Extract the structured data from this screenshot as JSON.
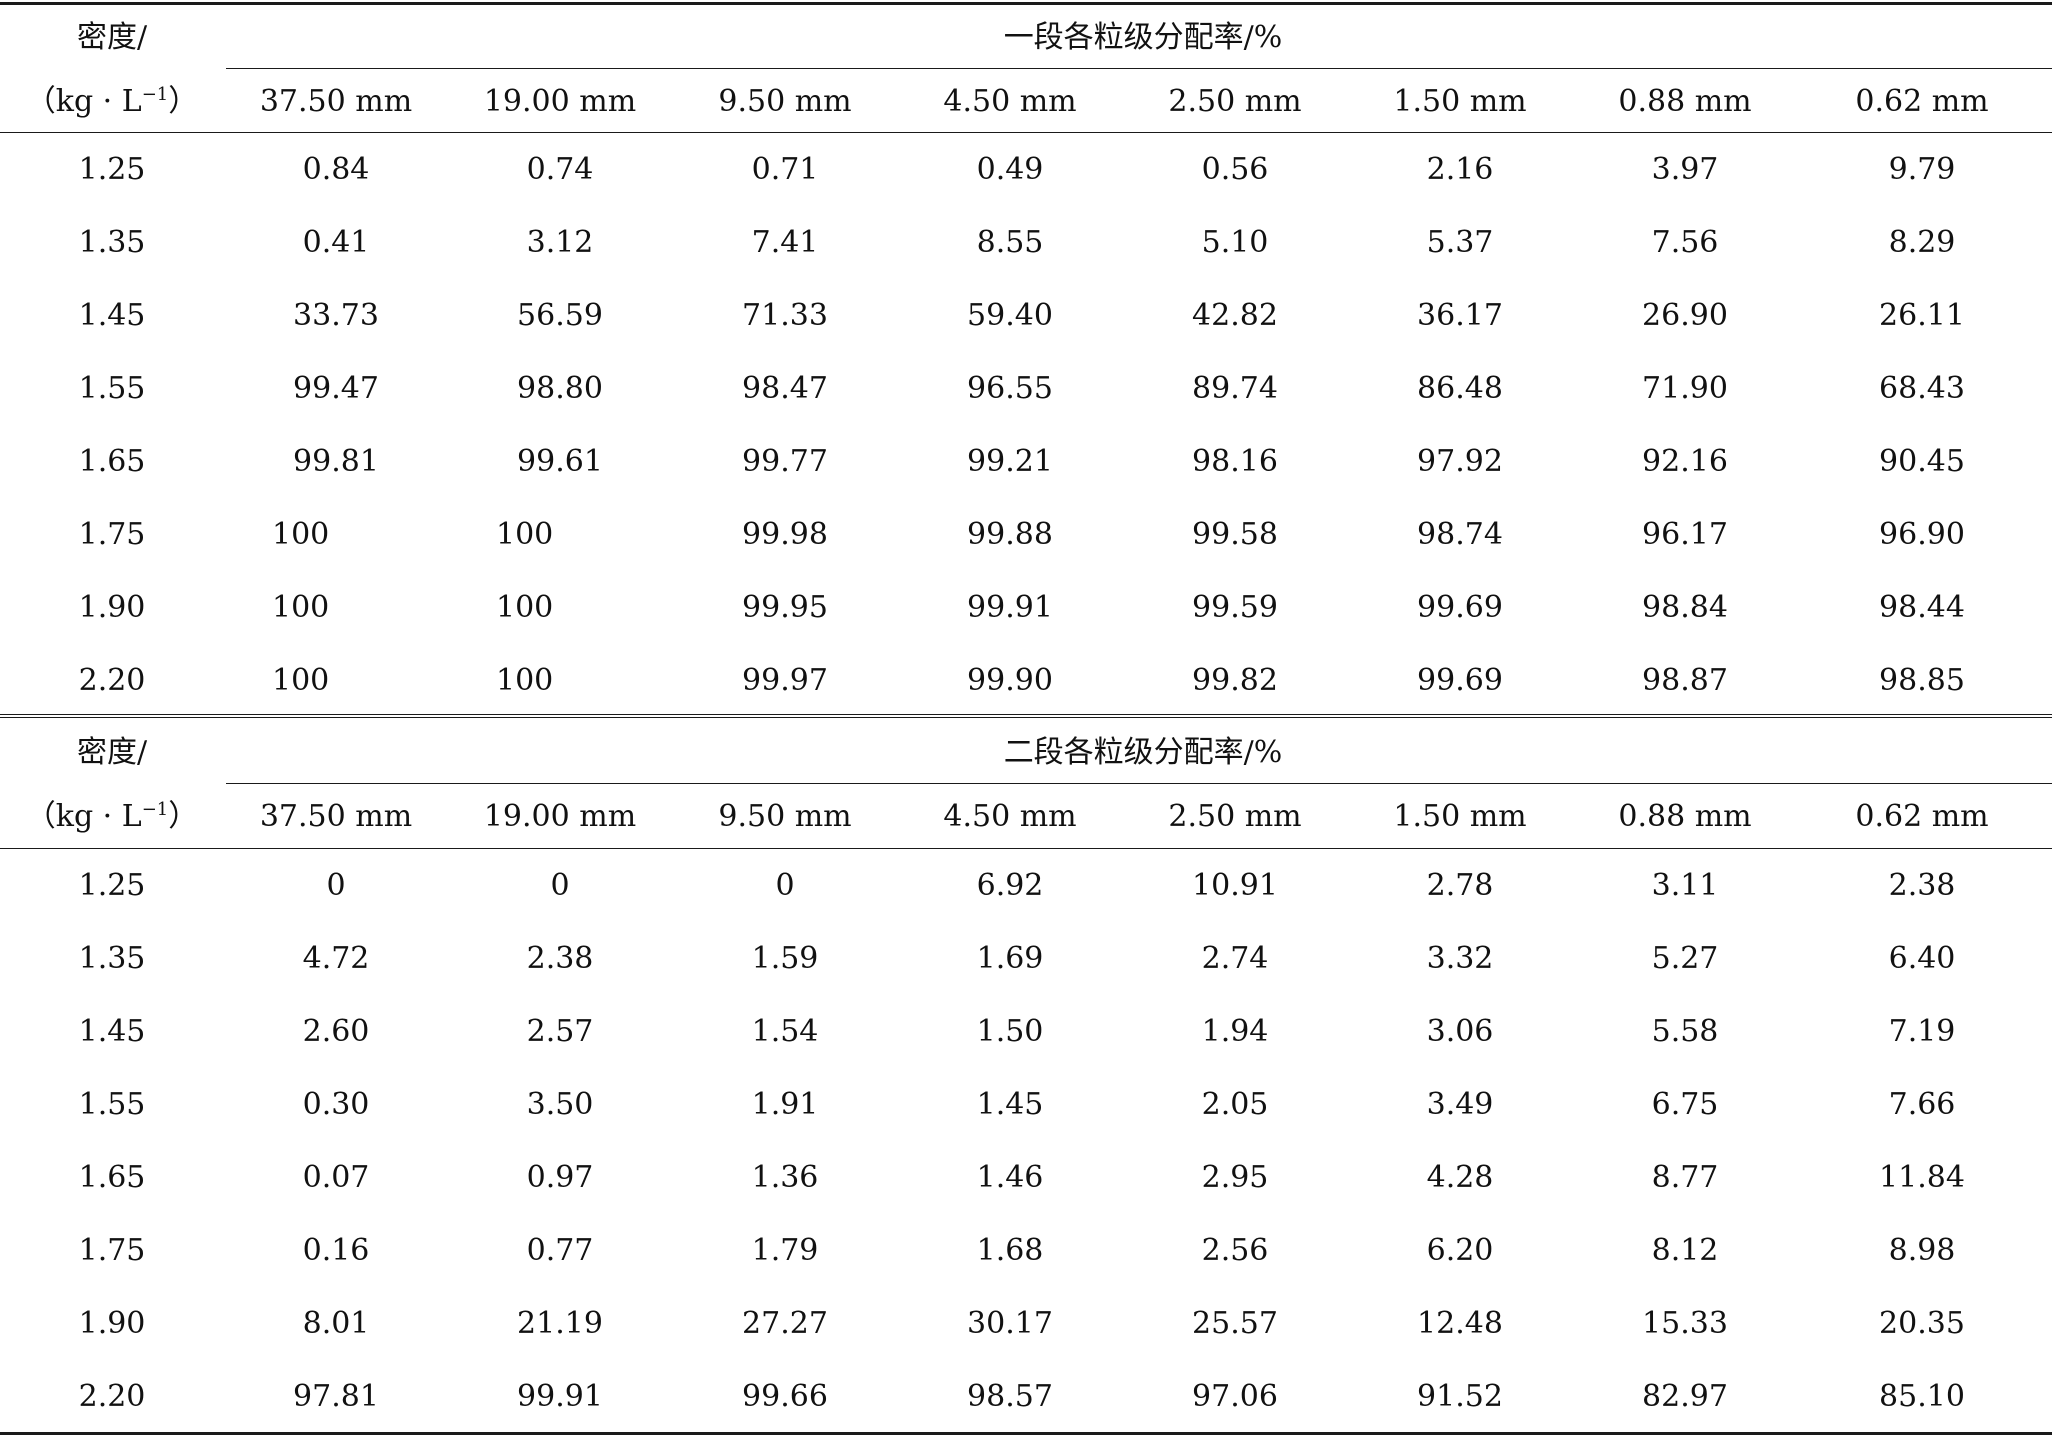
{
  "sections": [
    {
      "row_header_line1": "密度/",
      "row_header_line2_prefix": "（kg · L",
      "row_header_line2_sup": "−1",
      "row_header_line2_suffix": "）",
      "group_title": "一段各粒级分配率/%",
      "columns": [
        "37.50 mm",
        "19.00 mm",
        "9.50 mm",
        "4.50 mm",
        "2.50 mm",
        "1.50 mm",
        "0.88 mm",
        "0.62 mm"
      ],
      "rows": [
        {
          "density": "1.25",
          "values": [
            "0.84",
            "0.74",
            "0.71",
            "0.49",
            "0.56",
            "2.16",
            "3.97",
            "9.79"
          ]
        },
        {
          "density": "1.35",
          "values": [
            "0.41",
            "3.12",
            "7.41",
            "8.55",
            "5.10",
            "5.37",
            "7.56",
            "8.29"
          ]
        },
        {
          "density": "1.45",
          "values": [
            "33.73",
            "56.59",
            "71.33",
            "59.40",
            "42.82",
            "36.17",
            "26.90",
            "26.11"
          ]
        },
        {
          "density": "1.55",
          "values": [
            "99.47",
            "98.80",
            "98.47",
            "96.55",
            "89.74",
            "86.48",
            "71.90",
            "68.43"
          ]
        },
        {
          "density": "1.65",
          "values": [
            "99.81",
            "99.61",
            "99.77",
            "99.21",
            "98.16",
            "97.92",
            "92.16",
            "90.45"
          ]
        },
        {
          "density": "1.75",
          "values": [
            "100",
            "100",
            "99.98",
            "99.88",
            "99.58",
            "98.74",
            "96.17",
            "96.90"
          ]
        },
        {
          "density": "1.90",
          "values": [
            "100",
            "100",
            "99.95",
            "99.91",
            "99.59",
            "99.69",
            "98.84",
            "98.44"
          ]
        },
        {
          "density": "2.20",
          "values": [
            "100",
            "100",
            "99.97",
            "99.90",
            "99.82",
            "99.69",
            "98.87",
            "98.85"
          ]
        }
      ]
    },
    {
      "row_header_line1": "密度/",
      "row_header_line2_prefix": "（kg · L",
      "row_header_line2_sup": "−1",
      "row_header_line2_suffix": "）",
      "group_title": "二段各粒级分配率/%",
      "columns": [
        "37.50 mm",
        "19.00 mm",
        "9.50 mm",
        "4.50 mm",
        "2.50 mm",
        "1.50 mm",
        "0.88 mm",
        "0.62 mm"
      ],
      "rows": [
        {
          "density": "1.25",
          "values": [
            "0",
            "0",
            "0",
            "6.92",
            "10.91",
            "2.78",
            "3.11",
            "2.38"
          ]
        },
        {
          "density": "1.35",
          "values": [
            "4.72",
            "2.38",
            "1.59",
            "1.69",
            "2.74",
            "3.32",
            "5.27",
            "6.40"
          ]
        },
        {
          "density": "1.45",
          "values": [
            "2.60",
            "2.57",
            "1.54",
            "1.50",
            "1.94",
            "3.06",
            "5.58",
            "7.19"
          ]
        },
        {
          "density": "1.55",
          "values": [
            "0.30",
            "3.50",
            "1.91",
            "1.45",
            "2.05",
            "3.49",
            "6.75",
            "7.66"
          ]
        },
        {
          "density": "1.65",
          "values": [
            "0.07",
            "0.97",
            "1.36",
            "1.46",
            "2.95",
            "4.28",
            "8.77",
            "11.84"
          ]
        },
        {
          "density": "1.75",
          "values": [
            "0.16",
            "0.77",
            "1.79",
            "1.68",
            "2.56",
            "6.20",
            "8.12",
            "8.98"
          ]
        },
        {
          "density": "1.90",
          "values": [
            "8.01",
            "21.19",
            "27.27",
            "30.17",
            "25.57",
            "12.48",
            "15.33",
            "20.35"
          ]
        },
        {
          "density": "2.20",
          "values": [
            "97.81",
            "99.91",
            "99.66",
            "98.57",
            "97.06",
            "91.52",
            "82.97",
            "85.10"
          ]
        }
      ]
    }
  ]
}
